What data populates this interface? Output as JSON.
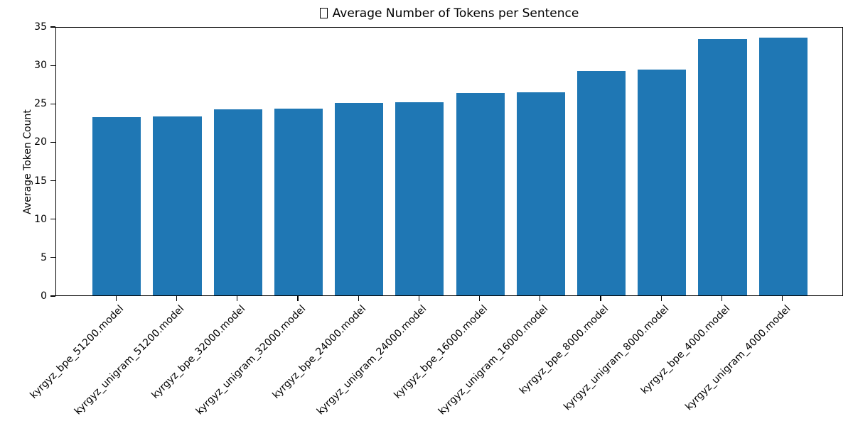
{
  "chart": {
    "title_prefix_icon": "missing-glyph-box",
    "title_text": "Average Number of Tokens per Sentence",
    "ylabel": "Average Token Count"
  },
  "chart_data": {
    "type": "bar",
    "title": "□ Average Number of Tokens per Sentence",
    "xlabel": "",
    "ylabel": "Average Token Count",
    "categories": [
      "kyrgyz_bpe_51200.model",
      "kyrgyz_unigram_51200.model",
      "kyrgyz_bpe_32000.model",
      "kyrgyz_unigram_32000.model",
      "kyrgyz_bpe_24000.model",
      "kyrgyz_unigram_24000.model",
      "kyrgyz_bpe_16000.model",
      "kyrgyz_unigram_16000.model",
      "kyrgyz_bpe_8000.model",
      "kyrgyz_unigram_8000.model",
      "kyrgyz_bpe_4000.model",
      "kyrgyz_unigram_4000.model"
    ],
    "values": [
      23.2,
      23.3,
      24.2,
      24.3,
      25.0,
      25.1,
      26.3,
      26.4,
      29.2,
      29.4,
      33.3,
      33.5
    ],
    "ylim": [
      0,
      35
    ],
    "yticks": [
      0,
      5,
      10,
      15,
      20,
      25,
      30,
      35
    ],
    "x_tick_rotation_deg": 45,
    "grid": false,
    "legend": false,
    "bar_color": "#1f77b4",
    "axis_color": "#000000"
  }
}
